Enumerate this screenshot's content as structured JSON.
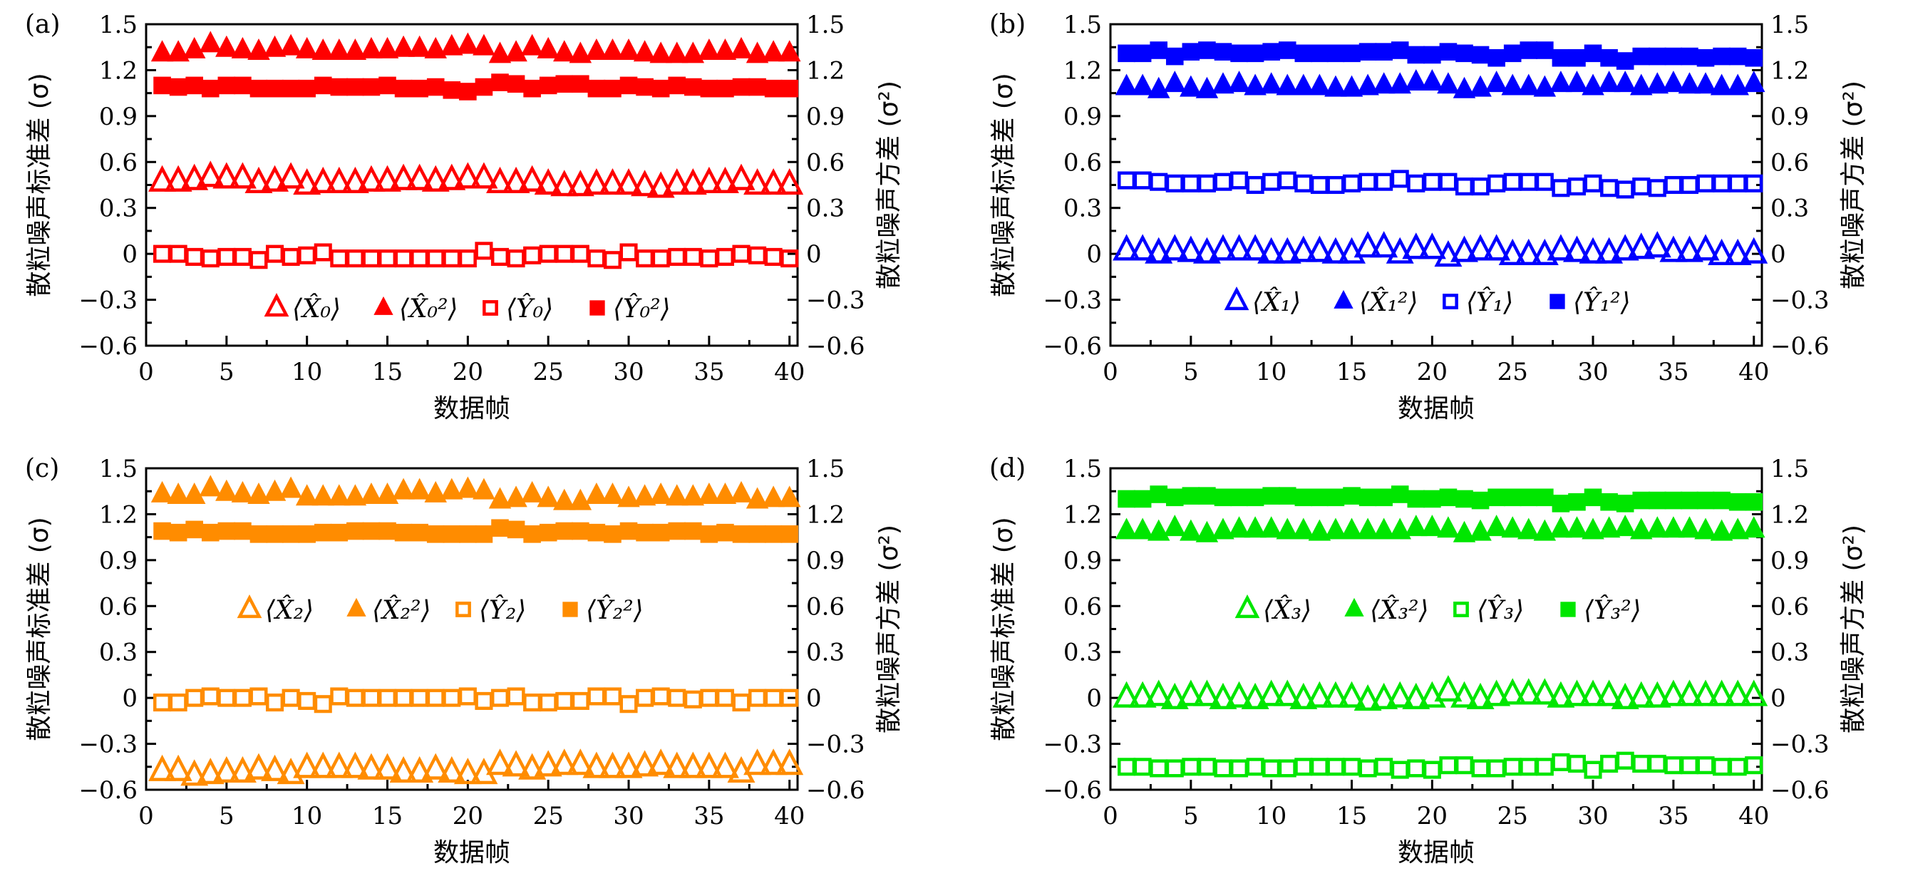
{
  "figure": {
    "left_ylabel": "散粒噪声标准差 (σ)",
    "right_ylabel": "散粒噪声方差 (σ²)",
    "xlabel": "数据帧"
  },
  "chart_data": [
    {
      "type": "scatter",
      "panel_label": "(a)",
      "xlabel": "数据帧",
      "ylabel": "散粒噪声标准差 (σ)",
      "ylabel_right": "散粒噪声方差 (σ²)",
      "xlim": [
        0,
        40.5
      ],
      "ylim": [
        -0.6,
        1.5
      ],
      "xticks": [
        0,
        5,
        10,
        15,
        20,
        25,
        30,
        35,
        40
      ],
      "yticks": [
        -0.6,
        -0.3,
        0,
        0.3,
        0.6,
        0.9,
        1.2,
        1.5
      ],
      "ytick_labels": [
        "−0.6",
        "−0.3",
        "0",
        "0.3",
        "0.6",
        "0.9",
        "1.2",
        "1.5"
      ],
      "legend_position": "lower-center",
      "color": "#ff0000",
      "x": [
        1,
        2,
        3,
        4,
        5,
        6,
        7,
        8,
        9,
        10,
        11,
        12,
        13,
        14,
        15,
        16,
        17,
        18,
        19,
        20,
        21,
        22,
        23,
        24,
        25,
        26,
        27,
        28,
        29,
        30,
        31,
        32,
        33,
        34,
        35,
        36,
        37,
        38,
        39,
        40
      ],
      "series": [
        {
          "name": "⟨X̂₀⟩",
          "legend": "⟨X̂₀⟩",
          "marker": "open-triangle",
          "values": [
            0.47,
            0.47,
            0.48,
            0.5,
            0.49,
            0.49,
            0.46,
            0.47,
            0.49,
            0.45,
            0.46,
            0.46,
            0.46,
            0.47,
            0.47,
            0.48,
            0.48,
            0.47,
            0.48,
            0.49,
            0.49,
            0.46,
            0.46,
            0.47,
            0.45,
            0.44,
            0.44,
            0.45,
            0.45,
            0.45,
            0.44,
            0.43,
            0.45,
            0.45,
            0.46,
            0.46,
            0.48,
            0.45,
            0.45,
            0.45
          ]
        },
        {
          "name": "⟨X̂₀²⟩",
          "legend": "⟨X̂₀²⟩",
          "marker": "filled-triangle",
          "values": [
            1.31,
            1.31,
            1.33,
            1.37,
            1.34,
            1.33,
            1.32,
            1.34,
            1.35,
            1.33,
            1.32,
            1.32,
            1.32,
            1.33,
            1.33,
            1.34,
            1.34,
            1.33,
            1.35,
            1.36,
            1.35,
            1.3,
            1.31,
            1.35,
            1.33,
            1.31,
            1.3,
            1.32,
            1.32,
            1.32,
            1.31,
            1.3,
            1.3,
            1.3,
            1.32,
            1.32,
            1.33,
            1.3,
            1.31,
            1.31
          ]
        },
        {
          "name": "⟨Ŷ₀⟩",
          "legend": "⟨Ŷ₀⟩",
          "marker": "open-square",
          "values": [
            0.0,
            0.0,
            -0.02,
            -0.03,
            -0.02,
            -0.02,
            -0.04,
            0.0,
            -0.02,
            -0.01,
            0.01,
            -0.03,
            -0.03,
            -0.03,
            -0.03,
            -0.03,
            -0.03,
            -0.03,
            -0.03,
            -0.03,
            0.02,
            -0.02,
            -0.03,
            -0.01,
            0.0,
            0.0,
            0.0,
            -0.03,
            -0.04,
            0.01,
            -0.03,
            -0.03,
            -0.02,
            -0.02,
            -0.03,
            -0.02,
            0.0,
            -0.01,
            -0.02,
            -0.03
          ]
        },
        {
          "name": "⟨Ŷ₀²⟩",
          "legend": "⟨Ŷ₀²⟩",
          "marker": "filled-square",
          "values": [
            1.1,
            1.09,
            1.1,
            1.08,
            1.1,
            1.1,
            1.08,
            1.08,
            1.08,
            1.08,
            1.1,
            1.09,
            1.09,
            1.09,
            1.1,
            1.08,
            1.08,
            1.09,
            1.07,
            1.06,
            1.09,
            1.12,
            1.11,
            1.08,
            1.1,
            1.11,
            1.11,
            1.08,
            1.08,
            1.1,
            1.09,
            1.08,
            1.1,
            1.09,
            1.08,
            1.08,
            1.09,
            1.09,
            1.08,
            1.08
          ]
        }
      ]
    },
    {
      "type": "scatter",
      "panel_label": "(b)",
      "xlabel": "数据帧",
      "ylabel": "散粒噪声标准差 (σ)",
      "ylabel_right": "散粒噪声方差 (σ²)",
      "xlim": [
        0,
        40.5
      ],
      "ylim": [
        -0.6,
        1.5
      ],
      "xticks": [
        0,
        5,
        10,
        15,
        20,
        25,
        30,
        35,
        40
      ],
      "yticks": [
        -0.6,
        -0.3,
        0,
        0.3,
        0.6,
        0.9,
        1.2,
        1.5
      ],
      "ytick_labels": [
        "−0.6",
        "−0.3",
        "0",
        "0.3",
        "0.6",
        "0.9",
        "1.2",
        "1.5"
      ],
      "legend_position": "lower-center",
      "color": "#0000ff",
      "x": [
        1,
        2,
        3,
        4,
        5,
        6,
        7,
        8,
        9,
        10,
        11,
        12,
        13,
        14,
        15,
        16,
        17,
        18,
        19,
        20,
        21,
        22,
        23,
        24,
        25,
        26,
        27,
        28,
        29,
        30,
        31,
        32,
        33,
        34,
        35,
        36,
        37,
        38,
        39,
        40
      ],
      "series": [
        {
          "name": "⟨X̂₁⟩",
          "legend": "⟨X̂₁⟩",
          "marker": "open-triangle",
          "values": [
            0.02,
            0.02,
            0.0,
            0.02,
            0.01,
            0.0,
            0.02,
            0.02,
            0.02,
            0.0,
            0.0,
            0.01,
            0.01,
            0.0,
            0.0,
            0.04,
            0.04,
            0.0,
            0.03,
            0.03,
            -0.02,
            0.01,
            0.02,
            0.02,
            -0.01,
            -0.01,
            -0.01,
            0.02,
            0.01,
            0.0,
            0.0,
            0.02,
            0.03,
            0.04,
            0.01,
            0.01,
            0.02,
            -0.01,
            -0.01,
            0.0
          ]
        },
        {
          "name": "⟨X̂₁²⟩",
          "legend": "⟨X̂₁²⟩",
          "marker": "filled-triangle",
          "values": [
            1.09,
            1.09,
            1.07,
            1.11,
            1.08,
            1.07,
            1.1,
            1.11,
            1.09,
            1.1,
            1.09,
            1.09,
            1.09,
            1.08,
            1.08,
            1.09,
            1.1,
            1.1,
            1.12,
            1.12,
            1.1,
            1.07,
            1.08,
            1.11,
            1.09,
            1.09,
            1.08,
            1.11,
            1.11,
            1.09,
            1.11,
            1.11,
            1.09,
            1.1,
            1.11,
            1.1,
            1.1,
            1.09,
            1.09,
            1.11
          ]
        },
        {
          "name": "⟨Ŷ₁⟩",
          "legend": "⟨Ŷ₁⟩",
          "marker": "open-square",
          "values": [
            0.48,
            0.48,
            0.47,
            0.46,
            0.46,
            0.46,
            0.47,
            0.48,
            0.45,
            0.47,
            0.48,
            0.46,
            0.45,
            0.45,
            0.46,
            0.47,
            0.47,
            0.49,
            0.46,
            0.47,
            0.47,
            0.44,
            0.44,
            0.46,
            0.47,
            0.47,
            0.47,
            0.43,
            0.44,
            0.46,
            0.43,
            0.42,
            0.44,
            0.43,
            0.45,
            0.45,
            0.46,
            0.46,
            0.46,
            0.46
          ]
        },
        {
          "name": "⟨Ŷ₁²⟩",
          "legend": "⟨Ŷ₁²⟩",
          "marker": "filled-square",
          "values": [
            1.31,
            1.31,
            1.33,
            1.29,
            1.32,
            1.33,
            1.32,
            1.31,
            1.31,
            1.32,
            1.33,
            1.31,
            1.31,
            1.31,
            1.31,
            1.32,
            1.32,
            1.33,
            1.3,
            1.3,
            1.32,
            1.31,
            1.3,
            1.28,
            1.31,
            1.33,
            1.33,
            1.28,
            1.28,
            1.31,
            1.28,
            1.26,
            1.29,
            1.29,
            1.29,
            1.29,
            1.28,
            1.29,
            1.29,
            1.28
          ]
        }
      ]
    },
    {
      "type": "scatter",
      "panel_label": "(c)",
      "xlabel": "数据帧",
      "ylabel": "散粒噪声标准差 (σ)",
      "ylabel_right": "散粒噪声方差 (σ²)",
      "xlim": [
        0,
        40.5
      ],
      "ylim": [
        -0.6,
        1.5
      ],
      "xticks": [
        0,
        5,
        10,
        15,
        20,
        25,
        30,
        35,
        40
      ],
      "yticks": [
        -0.6,
        -0.3,
        0,
        0.3,
        0.6,
        0.9,
        1.2,
        1.5
      ],
      "ytick_labels": [
        "−0.6",
        "−0.3",
        "0",
        "0.3",
        "0.6",
        "0.9",
        "1.2",
        "1.5"
      ],
      "legend_position": "center",
      "color": "#ff8c00",
      "x": [
        1,
        2,
        3,
        4,
        5,
        6,
        7,
        8,
        9,
        10,
        11,
        12,
        13,
        14,
        15,
        16,
        17,
        18,
        19,
        20,
        21,
        22,
        23,
        24,
        25,
        26,
        27,
        28,
        29,
        30,
        31,
        32,
        33,
        34,
        35,
        36,
        37,
        38,
        39,
        40
      ],
      "series": [
        {
          "name": "⟨X̂₂⟩",
          "legend": "⟨X̂₂⟩",
          "marker": "open-triangle",
          "values": [
            -0.48,
            -0.48,
            -0.51,
            -0.5,
            -0.49,
            -0.49,
            -0.47,
            -0.48,
            -0.5,
            -0.46,
            -0.46,
            -0.46,
            -0.46,
            -0.47,
            -0.47,
            -0.49,
            -0.49,
            -0.47,
            -0.49,
            -0.5,
            -0.5,
            -0.44,
            -0.45,
            -0.47,
            -0.45,
            -0.44,
            -0.44,
            -0.46,
            -0.46,
            -0.46,
            -0.45,
            -0.44,
            -0.46,
            -0.46,
            -0.46,
            -0.46,
            -0.49,
            -0.44,
            -0.44,
            -0.44
          ]
        },
        {
          "name": "⟨X̂₂²⟩",
          "legend": "⟨X̂₂²⟩",
          "marker": "filled-triangle",
          "values": [
            1.33,
            1.32,
            1.32,
            1.37,
            1.34,
            1.33,
            1.32,
            1.34,
            1.36,
            1.31,
            1.31,
            1.31,
            1.31,
            1.32,
            1.32,
            1.35,
            1.35,
            1.33,
            1.35,
            1.36,
            1.35,
            1.29,
            1.3,
            1.33,
            1.3,
            1.28,
            1.28,
            1.32,
            1.32,
            1.3,
            1.31,
            1.32,
            1.31,
            1.31,
            1.32,
            1.32,
            1.33,
            1.29,
            1.3,
            1.3
          ]
        },
        {
          "name": "⟨Ŷ₂⟩",
          "legend": "⟨Ŷ₂⟩",
          "marker": "open-square",
          "values": [
            -0.03,
            -0.03,
            0.0,
            0.01,
            0.0,
            0.0,
            0.01,
            -0.03,
            0.0,
            -0.02,
            -0.04,
            0.01,
            0.0,
            0.0,
            0.0,
            0.0,
            0.0,
            0.0,
            0.0,
            0.01,
            -0.02,
            0.0,
            0.01,
            -0.03,
            -0.03,
            -0.02,
            -0.02,
            0.01,
            0.01,
            -0.04,
            0.0,
            0.01,
            0.0,
            -0.01,
            0.0,
            0.0,
            -0.03,
            0.0,
            0.0,
            0.0
          ]
        },
        {
          "name": "⟨Ŷ₂²⟩",
          "legend": "⟨Ŷ₂²⟩",
          "marker": "filled-square",
          "values": [
            1.09,
            1.08,
            1.1,
            1.08,
            1.09,
            1.09,
            1.07,
            1.07,
            1.07,
            1.07,
            1.08,
            1.08,
            1.09,
            1.09,
            1.09,
            1.08,
            1.08,
            1.07,
            1.07,
            1.07,
            1.07,
            1.11,
            1.1,
            1.07,
            1.08,
            1.09,
            1.09,
            1.08,
            1.07,
            1.09,
            1.08,
            1.08,
            1.09,
            1.09,
            1.07,
            1.08,
            1.07,
            1.07,
            1.07,
            1.07
          ]
        }
      ]
    },
    {
      "type": "scatter",
      "panel_label": "(d)",
      "xlabel": "数据帧",
      "ylabel": "散粒噪声标准差 (σ)",
      "ylabel_right": "散粒噪声方差 (σ²)",
      "xlim": [
        0,
        40.5
      ],
      "ylim": [
        -0.6,
        1.5
      ],
      "xticks": [
        0,
        5,
        10,
        15,
        20,
        25,
        30,
        35,
        40
      ],
      "yticks": [
        -0.6,
        -0.3,
        0,
        0.3,
        0.6,
        0.9,
        1.2,
        1.5
      ],
      "ytick_labels": [
        "−0.6",
        "−0.3",
        "0",
        "0.3",
        "0.6",
        "0.9",
        "1.2",
        "1.5"
      ],
      "legend_position": "center",
      "color": "#00e600",
      "x": [
        1,
        2,
        3,
        4,
        5,
        6,
        7,
        8,
        9,
        10,
        11,
        12,
        13,
        14,
        15,
        16,
        17,
        18,
        19,
        20,
        21,
        22,
        23,
        24,
        25,
        26,
        27,
        28,
        29,
        30,
        31,
        32,
        33,
        34,
        35,
        36,
        37,
        38,
        39,
        40
      ],
      "series": [
        {
          "name": "⟨X̂₃⟩",
          "legend": "⟨X̂₃⟩",
          "marker": "open-triangle",
          "values": [
            0.0,
            0.0,
            0.01,
            -0.01,
            0.01,
            0.01,
            -0.01,
            0.0,
            -0.01,
            0.01,
            0.01,
            -0.01,
            0.0,
            0.0,
            0.0,
            -0.02,
            -0.01,
            0.0,
            -0.01,
            0.0,
            0.04,
            0.0,
            -0.01,
            0.01,
            0.02,
            0.02,
            0.02,
            0.0,
            0.01,
            0.01,
            0.01,
            -0.01,
            0.0,
            0.0,
            0.01,
            0.01,
            0.01,
            0.01,
            0.01,
            0.01
          ]
        },
        {
          "name": "⟨X̂₃²⟩",
          "legend": "⟨X̂₃²⟩",
          "marker": "filled-triangle",
          "values": [
            1.09,
            1.09,
            1.08,
            1.11,
            1.08,
            1.07,
            1.09,
            1.1,
            1.1,
            1.1,
            1.09,
            1.09,
            1.08,
            1.09,
            1.09,
            1.09,
            1.09,
            1.09,
            1.11,
            1.11,
            1.1,
            1.07,
            1.08,
            1.11,
            1.1,
            1.09,
            1.08,
            1.1,
            1.1,
            1.09,
            1.1,
            1.11,
            1.09,
            1.1,
            1.1,
            1.1,
            1.09,
            1.08,
            1.09,
            1.1
          ]
        },
        {
          "name": "⟨Ŷ₃⟩",
          "legend": "⟨Ŷ₃⟩",
          "marker": "open-square",
          "values": [
            -0.45,
            -0.45,
            -0.46,
            -0.46,
            -0.45,
            -0.45,
            -0.46,
            -0.46,
            -0.45,
            -0.46,
            -0.46,
            -0.45,
            -0.45,
            -0.45,
            -0.45,
            -0.46,
            -0.45,
            -0.47,
            -0.46,
            -0.47,
            -0.44,
            -0.44,
            -0.46,
            -0.46,
            -0.45,
            -0.45,
            -0.45,
            -0.42,
            -0.43,
            -0.47,
            -0.43,
            -0.41,
            -0.43,
            -0.43,
            -0.44,
            -0.44,
            -0.44,
            -0.45,
            -0.45,
            -0.44
          ]
        },
        {
          "name": "⟨Ŷ₃²⟩",
          "legend": "⟨Ŷ₃²⟩",
          "marker": "filled-square",
          "values": [
            1.3,
            1.3,
            1.33,
            1.31,
            1.32,
            1.32,
            1.31,
            1.31,
            1.31,
            1.32,
            1.32,
            1.31,
            1.31,
            1.31,
            1.32,
            1.31,
            1.31,
            1.33,
            1.3,
            1.3,
            1.31,
            1.3,
            1.29,
            1.31,
            1.31,
            1.31,
            1.31,
            1.27,
            1.28,
            1.31,
            1.28,
            1.27,
            1.29,
            1.29,
            1.29,
            1.29,
            1.29,
            1.29,
            1.28,
            1.28
          ]
        }
      ]
    }
  ]
}
